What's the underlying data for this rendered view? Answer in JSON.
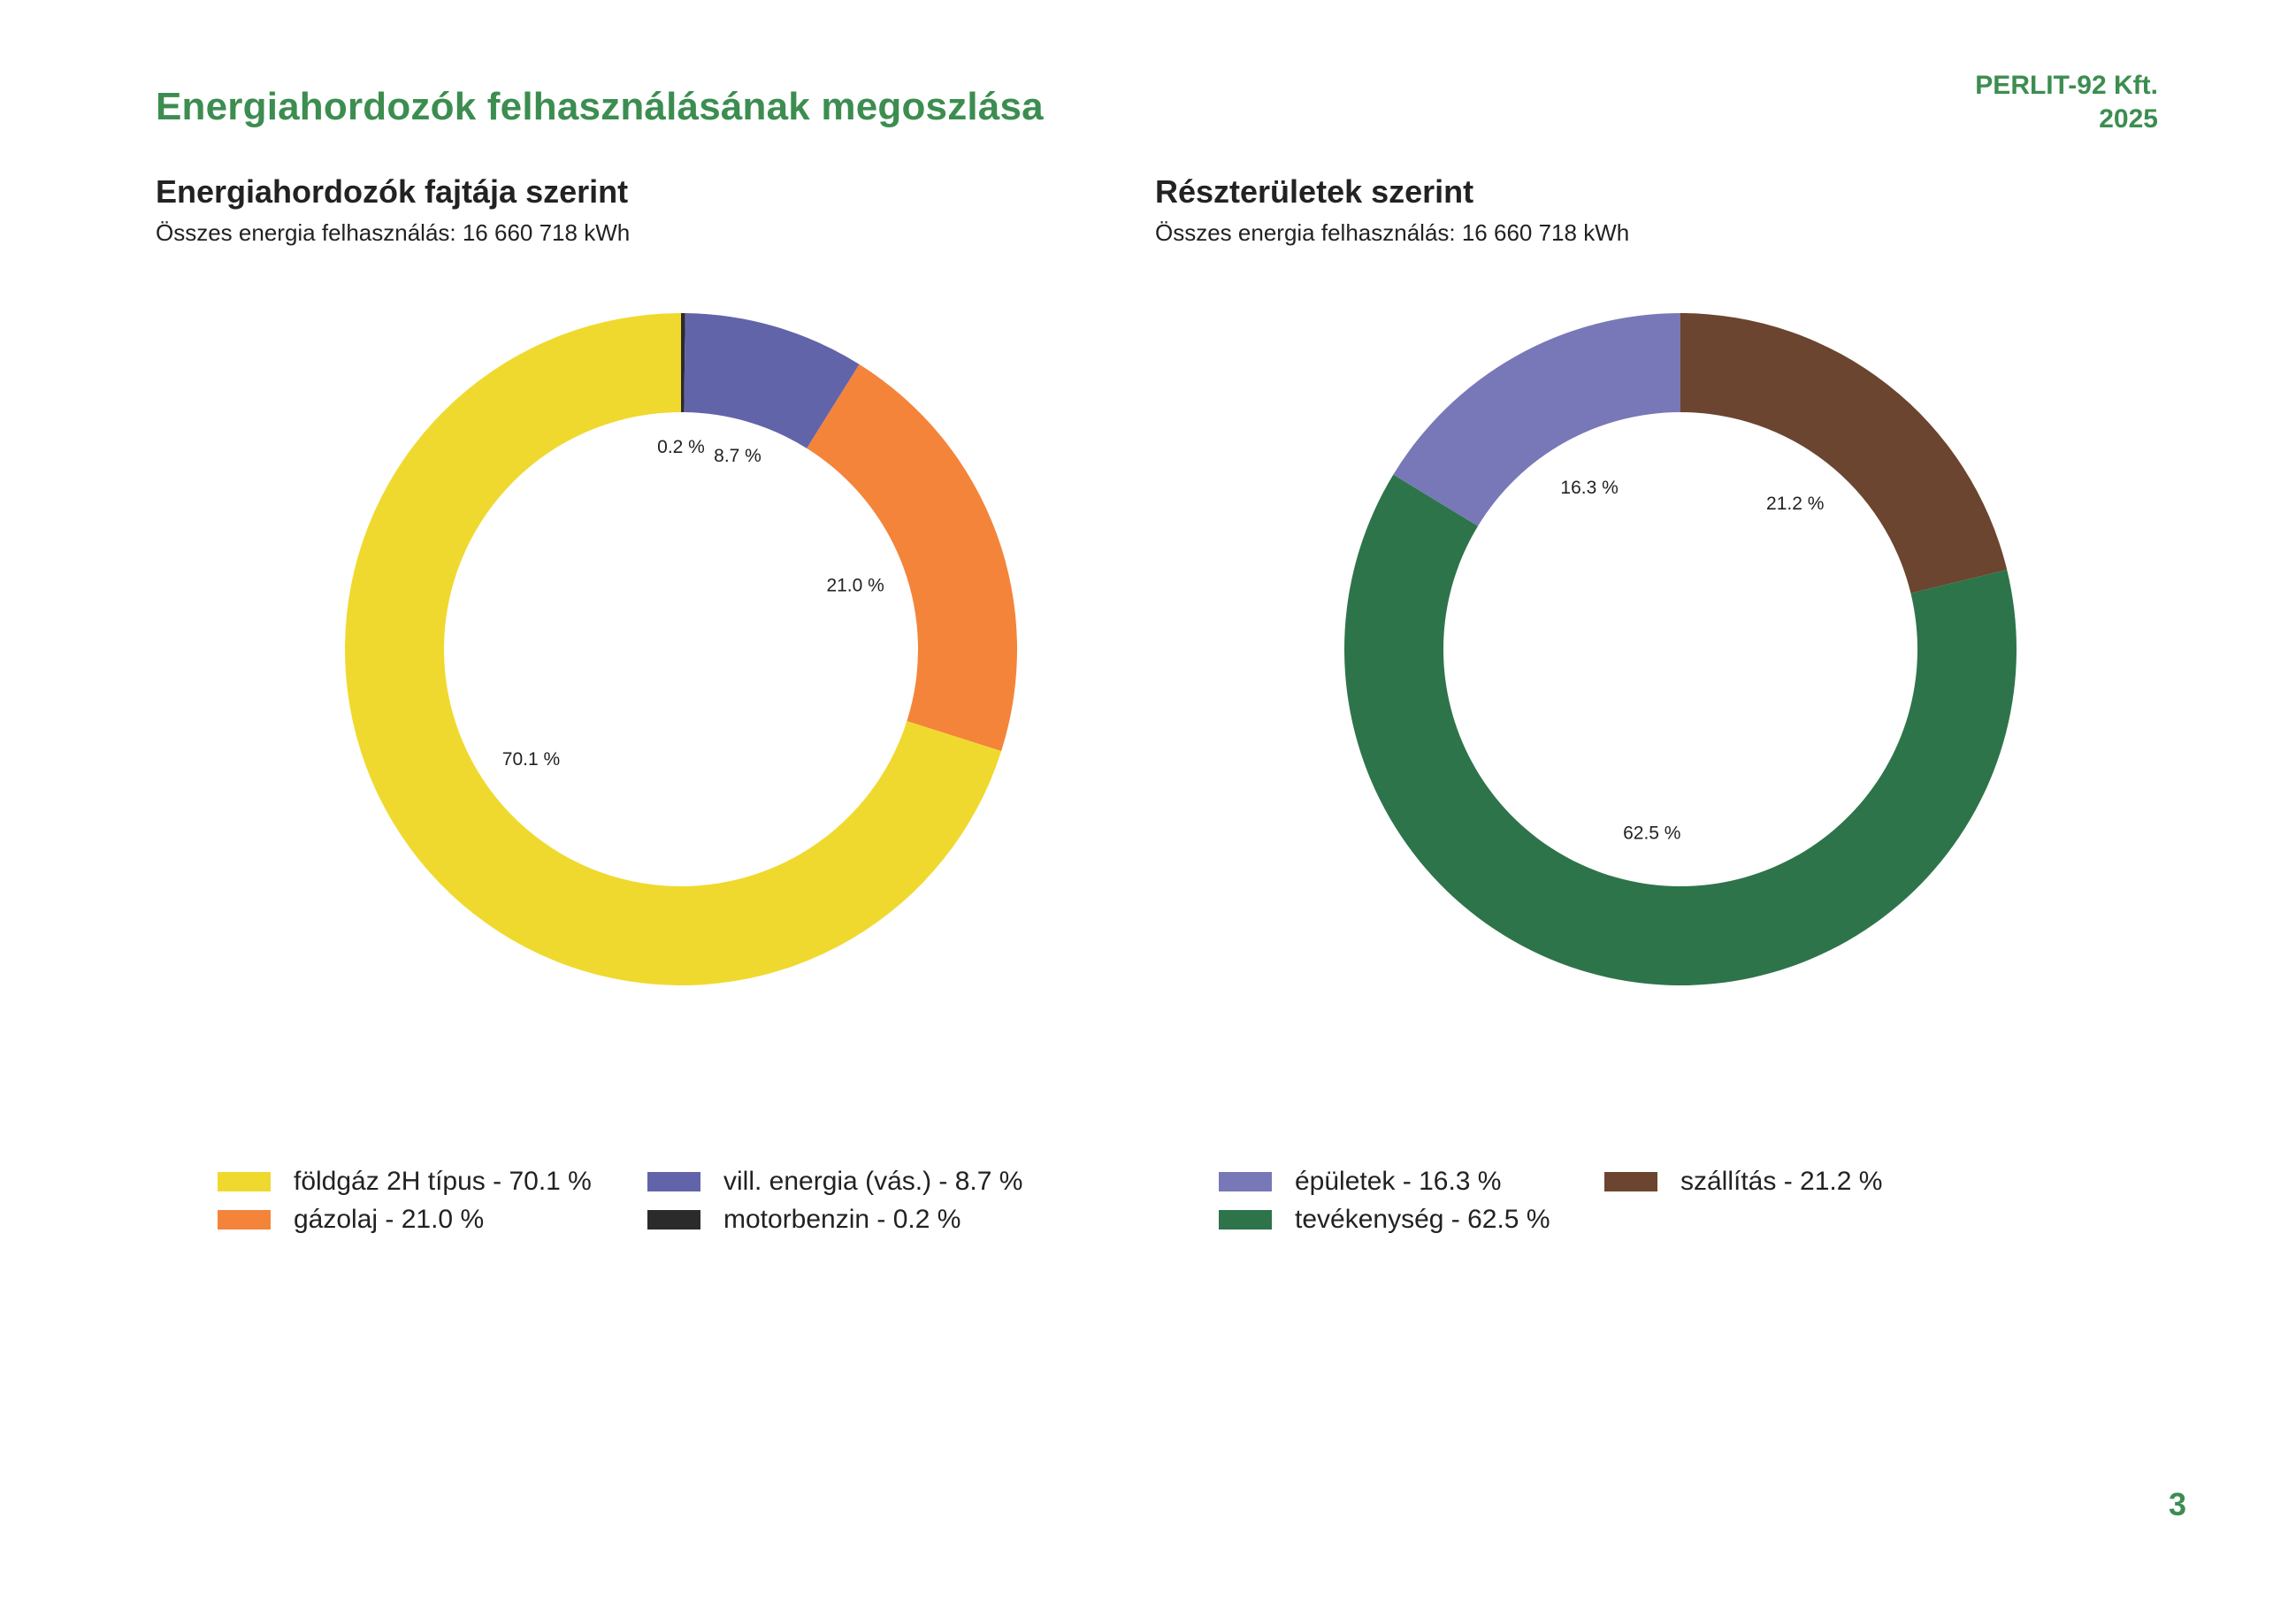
{
  "header": {
    "title": "Energiahordozók felhasználásának megoszlása",
    "company": "PERLIT-92 Kft.",
    "year": "2025"
  },
  "page_number": "3",
  "chart_data": [
    {
      "type": "pie",
      "title": "Energiahordozók fajtája szerint",
      "subtitle": "Összes energia felhasználás: 16 660 718 kWh",
      "slices": [
        {
          "name": "motorbenzin",
          "value": 0.2,
          "label": "0.2 %",
          "color": "#2b2b2b"
        },
        {
          "name": "vill. energia (vás.)",
          "value": 8.7,
          "label": "8.7 %",
          "color": "#6264aa"
        },
        {
          "name": "gázolaj",
          "value": 21.0,
          "label": "21.0 %",
          "color": "#f4843a"
        },
        {
          "name": "földgáz 2H típus",
          "value": 70.1,
          "label": "70.1 %",
          "color": "#f0d92e"
        }
      ],
      "legend": [
        {
          "text": "földgáz 2H típus - 70.1 %",
          "color": "#f0d92e"
        },
        {
          "text": "vill. energia (vás.) - 8.7 %",
          "color": "#6264aa"
        },
        {
          "text": "gázolaj - 21.0 %",
          "color": "#f4843a"
        },
        {
          "text": "motorbenzin - 0.2 %",
          "color": "#2b2b2b"
        }
      ]
    },
    {
      "type": "pie",
      "title": "Részterületek szerint",
      "subtitle": "Összes energia felhasználás: 16 660 718 kWh",
      "slices": [
        {
          "name": "szállítás",
          "value": 21.2,
          "label": "21.2 %",
          "color": "#6b452f"
        },
        {
          "name": "tevékenység",
          "value": 62.5,
          "label": "62.5 %",
          "color": "#2e744a"
        },
        {
          "name": "épületek",
          "value": 16.3,
          "label": "16.3 %",
          "color": "#7878b8"
        }
      ],
      "legend": [
        {
          "text": "épületek - 16.3 %",
          "color": "#7878b8"
        },
        {
          "text": "szállítás - 21.2 %",
          "color": "#6b452f"
        },
        {
          "text": "tevékenység - 62.5 %",
          "color": "#2e744a"
        }
      ]
    }
  ]
}
